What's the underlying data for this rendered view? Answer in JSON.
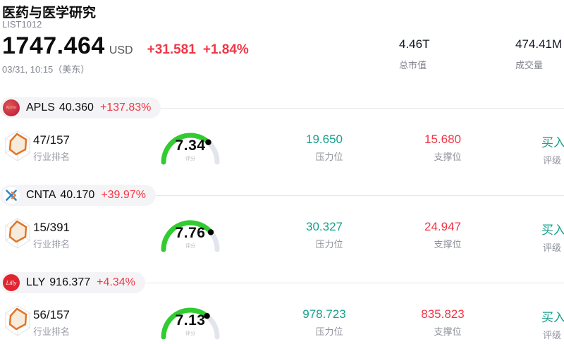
{
  "header": {
    "title": "医药与医学研究",
    "list_id": "LIST1012",
    "price": "1747.464",
    "currency": "USD",
    "change_abs": "+31.581",
    "change_pct": "+1.84%",
    "timestamp": "03/31, 10:15（美东）",
    "market_cap": {
      "value": "4.46T",
      "label": "总市值"
    },
    "volume": {
      "value": "474.41M",
      "label": "成交量"
    }
  },
  "labels": {
    "industry_rank": "行业排名",
    "score": "评分",
    "resistance": "压力位",
    "support": "支撑位",
    "rating": "评级"
  },
  "colors": {
    "up_red": "#f23645",
    "teal": "#18a08c",
    "gauge_green": "#32cb32",
    "gauge_track": "#e3e5ed"
  },
  "stocks": [
    {
      "symbol": "APLS",
      "logo_text": "Apellis",
      "price": "40.360",
      "change": "+137.83%",
      "rank": "47/157",
      "score": "7.34",
      "resistance": "19.650",
      "support": "15.680",
      "rating": "买入"
    },
    {
      "symbol": "CNTA",
      "price": "40.170",
      "change": "+39.97%",
      "rank": "15/391",
      "score": "7.76",
      "resistance": "30.327",
      "support": "24.947",
      "rating": "买入"
    },
    {
      "symbol": "LLY",
      "logo_text": "Lilly",
      "price": "916.377",
      "change": "+4.34%",
      "rank": "56/157",
      "score": "7.13",
      "resistance": "978.723",
      "support": "835.823",
      "rating": "买入"
    }
  ]
}
